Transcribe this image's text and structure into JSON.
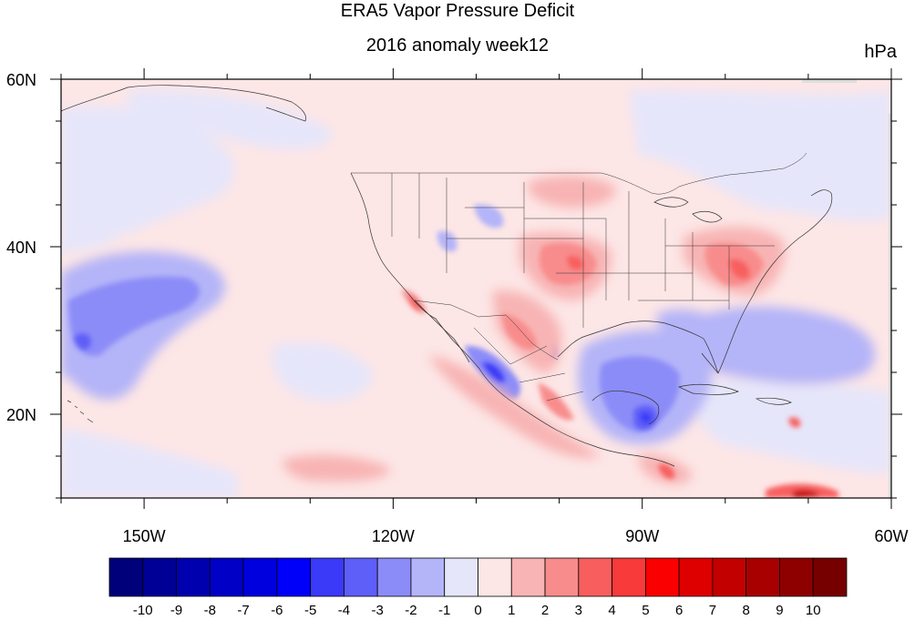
{
  "title": "ERA5 Vapor Pressure Deficit",
  "subtitle": "2016 anomaly week12",
  "units": "hPa",
  "map": {
    "lon_range": [
      -160,
      -60
    ],
    "lat_range": [
      10,
      60
    ],
    "lon_ticks": [
      {
        "lon": -150,
        "label": "150W"
      },
      {
        "lon": -120,
        "label": "120W"
      },
      {
        "lon": -90,
        "label": "90W"
      },
      {
        "lon": -60,
        "label": "60W"
      }
    ],
    "lat_ticks": [
      {
        "lat": 60,
        "label": "60N"
      },
      {
        "lat": 40,
        "label": "40N"
      },
      {
        "lat": 20,
        "label": "20N"
      }
    ],
    "background_color": "#fde6e6",
    "anomaly_regions": [
      {
        "name": "north-pacific-cool-pool",
        "level": -3,
        "color": "#9898f8",
        "lon": -148,
        "lat": 32
      },
      {
        "name": "north-pacific-cool-core",
        "level": -4,
        "color": "#5a5af8",
        "lon": -150,
        "lat": 30
      },
      {
        "name": "alaska-gulf-cool",
        "level": -1,
        "color": "#e6e6fa",
        "lon": -145,
        "lat": 55
      },
      {
        "name": "gulf-of-mexico-cool",
        "level": -4,
        "color": "#5a5af8",
        "lon": -90,
        "lat": 22
      },
      {
        "name": "yucatan-cool-core",
        "level": -6,
        "color": "#1a1af0",
        "lon": -89,
        "lat": 20
      },
      {
        "name": "baja-cool-core",
        "level": -5,
        "color": "#3c3cf0",
        "lon": -107,
        "lat": 26
      },
      {
        "name": "western-atlantic-cool",
        "level": -2,
        "color": "#b8b8f8",
        "lon": -75,
        "lat": 30
      },
      {
        "name": "mid-atlantic-warm",
        "level": 3,
        "color": "#f88888",
        "lon": -78,
        "lat": 38
      },
      {
        "name": "central-plains-warm",
        "level": 3,
        "color": "#f88888",
        "lon": -100,
        "lat": 38
      },
      {
        "name": "texas-mexico-warm",
        "level": 4,
        "color": "#f85a5a",
        "lon": -106,
        "lat": 30
      },
      {
        "name": "northern-plains-warm",
        "level": 2,
        "color": "#f8b0b0",
        "lon": -98,
        "lat": 48
      },
      {
        "name": "caribbean-warm",
        "level": 8,
        "color": "#c01010",
        "lon": -73,
        "lat": 11
      }
    ]
  },
  "colorbar": {
    "labels": [
      "-10",
      "-9",
      "-8",
      "-7",
      "-6",
      "-5",
      "-4",
      "-3",
      "-2",
      "-1",
      "0",
      "1",
      "2",
      "3",
      "4",
      "5",
      "6",
      "7",
      "8",
      "9",
      "10"
    ],
    "colors": [
      "#00007a",
      "#000096",
      "#0000ae",
      "#0000c6",
      "#0000de",
      "#0000fa",
      "#3a3af8",
      "#5e5ef8",
      "#8c8cf8",
      "#b4b4f8",
      "#e6e6fa",
      "#fde6e6",
      "#f8b4b4",
      "#f88c8c",
      "#f85e5e",
      "#f83a3a",
      "#fa0000",
      "#de0000",
      "#c20000",
      "#a80000",
      "#8e0000",
      "#760000"
    ]
  }
}
